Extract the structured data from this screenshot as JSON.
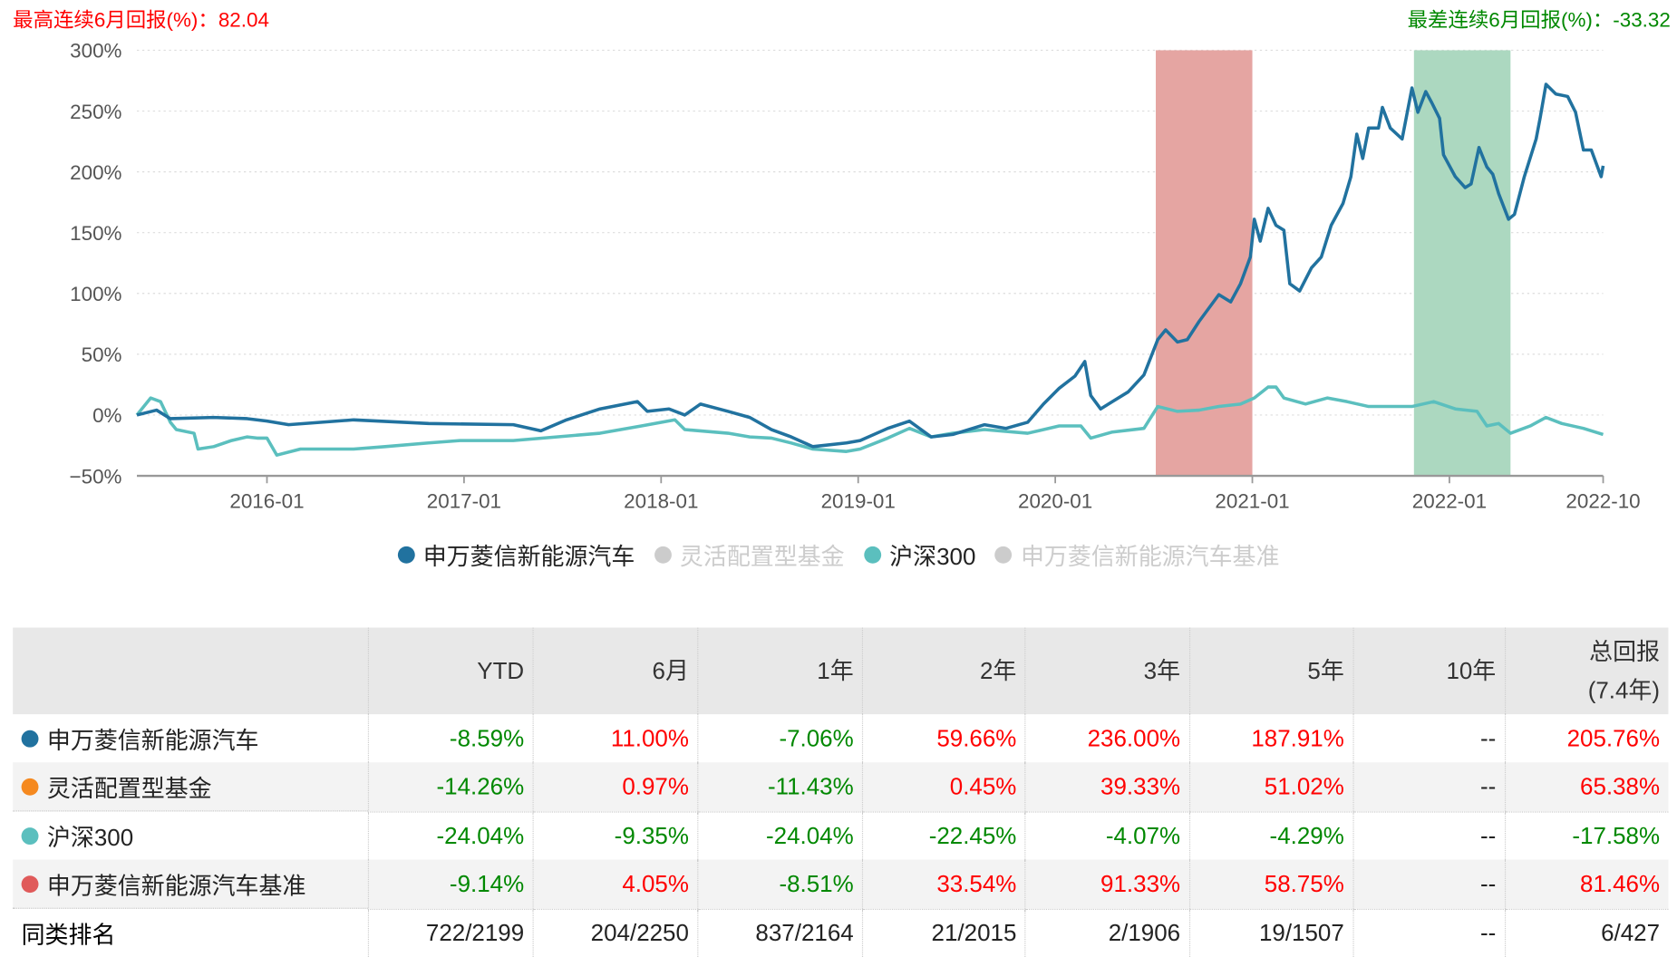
{
  "header": {
    "best_label": "最高连续6月回报(%)：82.04",
    "worst_label": "最差连续6月回报(%)：-33.32"
  },
  "colors": {
    "fund": "#21729f",
    "hs300": "#5bbfbe",
    "flex": "#f5891f",
    "bench": "#e05a5a",
    "inactive": "#cccccc",
    "best_band": "#e5a5a2",
    "worst_band": "#acd8c0"
  },
  "chart_data": {
    "type": "line",
    "xlim": [
      2015.34,
      2022.78
    ],
    "ylim": [
      -50,
      300
    ],
    "yticks": [
      {
        "v": 300,
        "label": "300%"
      },
      {
        "v": 250,
        "label": "250%"
      },
      {
        "v": 200,
        "label": "200%"
      },
      {
        "v": 150,
        "label": "150%"
      },
      {
        "v": 100,
        "label": "100%"
      },
      {
        "v": 50,
        "label": "50%"
      },
      {
        "v": 0,
        "label": "0%"
      },
      {
        "v": -50,
        "label": "−50%"
      }
    ],
    "xticks": [
      {
        "v": 2016.0,
        "label": "2016-01"
      },
      {
        "v": 2017.0,
        "label": "2017-01"
      },
      {
        "v": 2018.0,
        "label": "2018-01"
      },
      {
        "v": 2019.0,
        "label": "2019-01"
      },
      {
        "v": 2020.0,
        "label": "2020-01"
      },
      {
        "v": 2021.0,
        "label": "2021-01"
      },
      {
        "v": 2022.0,
        "label": "2022-01"
      },
      {
        "v": 2022.78,
        "label": "2022-10"
      }
    ],
    "bands": [
      {
        "name": "best-6m",
        "from": 2020.51,
        "to": 2021.0,
        "color": "#e5a5a2"
      },
      {
        "name": "worst-6m",
        "from": 2021.82,
        "to": 2022.31,
        "color": "#acd8c0"
      }
    ],
    "series": [
      {
        "name": "申万菱信新能源汽车",
        "color": "#21729f",
        "active": true,
        "points": [
          [
            2015.34,
            0
          ],
          [
            2015.44,
            4
          ],
          [
            2015.51,
            -3
          ],
          [
            2015.73,
            -2
          ],
          [
            2015.9,
            -3
          ],
          [
            2016.0,
            -5
          ],
          [
            2016.11,
            -8
          ],
          [
            2016.44,
            -4
          ],
          [
            2016.82,
            -7
          ],
          [
            2017.25,
            -8
          ],
          [
            2017.39,
            -13
          ],
          [
            2017.52,
            -4
          ],
          [
            2017.69,
            5
          ],
          [
            2017.88,
            11
          ],
          [
            2017.93,
            3
          ],
          [
            2018.04,
            5
          ],
          [
            2018.12,
            0
          ],
          [
            2018.2,
            9
          ],
          [
            2018.34,
            3
          ],
          [
            2018.45,
            -2
          ],
          [
            2018.56,
            -12
          ],
          [
            2018.66,
            -18
          ],
          [
            2018.77,
            -26
          ],
          [
            2018.94,
            -23
          ],
          [
            2019.01,
            -21
          ],
          [
            2019.15,
            -11
          ],
          [
            2019.26,
            -5
          ],
          [
            2019.37,
            -18
          ],
          [
            2019.48,
            -16
          ],
          [
            2019.64,
            -8
          ],
          [
            2019.75,
            -11
          ],
          [
            2019.86,
            -6
          ],
          [
            2019.94,
            9
          ],
          [
            2020.02,
            22
          ],
          [
            2020.1,
            32
          ],
          [
            2020.15,
            44
          ],
          [
            2020.18,
            16
          ],
          [
            2020.23,
            5
          ],
          [
            2020.29,
            11
          ],
          [
            2020.37,
            19
          ],
          [
            2020.45,
            33
          ],
          [
            2020.52,
            62
          ],
          [
            2020.56,
            70
          ],
          [
            2020.62,
            60
          ],
          [
            2020.67,
            62
          ],
          [
            2020.73,
            77
          ],
          [
            2020.78,
            88
          ],
          [
            2020.83,
            99
          ],
          [
            2020.89,
            93
          ],
          [
            2020.94,
            108
          ],
          [
            2020.99,
            130
          ],
          [
            2021.01,
            161
          ],
          [
            2021.04,
            143
          ],
          [
            2021.08,
            170
          ],
          [
            2021.12,
            156
          ],
          [
            2021.16,
            152
          ],
          [
            2021.19,
            108
          ],
          [
            2021.24,
            102
          ],
          [
            2021.3,
            121
          ],
          [
            2021.35,
            130
          ],
          [
            2021.4,
            156
          ],
          [
            2021.46,
            174
          ],
          [
            2021.5,
            196
          ],
          [
            2021.53,
            231
          ],
          [
            2021.56,
            211
          ],
          [
            2021.59,
            236
          ],
          [
            2021.64,
            236
          ],
          [
            2021.66,
            253
          ],
          [
            2021.7,
            236
          ],
          [
            2021.76,
            227
          ],
          [
            2021.81,
            269
          ],
          [
            2021.84,
            249
          ],
          [
            2021.88,
            266
          ],
          [
            2021.91,
            257
          ],
          [
            2021.95,
            244
          ],
          [
            2021.97,
            214
          ],
          [
            2022.03,
            196
          ],
          [
            2022.08,
            187
          ],
          [
            2022.11,
            190
          ],
          [
            2022.15,
            220
          ],
          [
            2022.19,
            204
          ],
          [
            2022.22,
            198
          ],
          [
            2022.25,
            182
          ],
          [
            2022.3,
            161
          ],
          [
            2022.33,
            165
          ],
          [
            2022.38,
            196
          ],
          [
            2022.44,
            227
          ],
          [
            2022.46,
            244
          ],
          [
            2022.49,
            272
          ],
          [
            2022.54,
            264
          ],
          [
            2022.6,
            262
          ],
          [
            2022.64,
            249
          ],
          [
            2022.68,
            218
          ],
          [
            2022.72,
            218
          ],
          [
            2022.77,
            196
          ],
          [
            2022.78,
            205
          ]
        ]
      },
      {
        "name": "灵活配置型基金",
        "color": "#cccccc",
        "active": false,
        "points": []
      },
      {
        "name": "沪深300",
        "color": "#5bbfbe",
        "active": true,
        "points": [
          [
            2015.34,
            0
          ],
          [
            2015.41,
            14
          ],
          [
            2015.46,
            11
          ],
          [
            2015.51,
            -6
          ],
          [
            2015.54,
            -12
          ],
          [
            2015.63,
            -15
          ],
          [
            2015.65,
            -28
          ],
          [
            2015.73,
            -26
          ],
          [
            2015.82,
            -21
          ],
          [
            2015.9,
            -18
          ],
          [
            2015.95,
            -19
          ],
          [
            2016.0,
            -19
          ],
          [
            2016.05,
            -33
          ],
          [
            2016.17,
            -28
          ],
          [
            2016.44,
            -28
          ],
          [
            2016.6,
            -26
          ],
          [
            2016.82,
            -23
          ],
          [
            2016.98,
            -21
          ],
          [
            2017.25,
            -21
          ],
          [
            2017.47,
            -18
          ],
          [
            2017.69,
            -15
          ],
          [
            2017.9,
            -9
          ],
          [
            2018.07,
            -4
          ],
          [
            2018.12,
            -12
          ],
          [
            2018.34,
            -15
          ],
          [
            2018.45,
            -18
          ],
          [
            2018.56,
            -19
          ],
          [
            2018.66,
            -23
          ],
          [
            2018.77,
            -28
          ],
          [
            2018.94,
            -30
          ],
          [
            2019.01,
            -28
          ],
          [
            2019.15,
            -19
          ],
          [
            2019.26,
            -11
          ],
          [
            2019.37,
            -18
          ],
          [
            2019.48,
            -15
          ],
          [
            2019.64,
            -12
          ],
          [
            2019.86,
            -15
          ],
          [
            2020.02,
            -9
          ],
          [
            2020.13,
            -9
          ],
          [
            2020.18,
            -19
          ],
          [
            2020.29,
            -14
          ],
          [
            2020.45,
            -11
          ],
          [
            2020.52,
            7
          ],
          [
            2020.62,
            3
          ],
          [
            2020.73,
            4
          ],
          [
            2020.83,
            7
          ],
          [
            2020.94,
            9
          ],
          [
            2021.01,
            14
          ],
          [
            2021.08,
            23
          ],
          [
            2021.12,
            23
          ],
          [
            2021.16,
            14
          ],
          [
            2021.27,
            9
          ],
          [
            2021.38,
            14
          ],
          [
            2021.48,
            11
          ],
          [
            2021.59,
            7
          ],
          [
            2021.81,
            7
          ],
          [
            2021.92,
            11
          ],
          [
            2022.03,
            5
          ],
          [
            2022.14,
            3
          ],
          [
            2022.19,
            -9
          ],
          [
            2022.25,
            -7
          ],
          [
            2022.31,
            -15
          ],
          [
            2022.41,
            -9
          ],
          [
            2022.49,
            -2
          ],
          [
            2022.57,
            -7
          ],
          [
            2022.68,
            -11
          ],
          [
            2022.78,
            -16
          ]
        ]
      },
      {
        "name": "申万菱信新能源汽车基准",
        "color": "#cccccc",
        "active": false,
        "points": []
      }
    ]
  },
  "table": {
    "headers": [
      "",
      "YTD",
      "6月",
      "1年",
      "2年",
      "3年",
      "5年",
      "10年",
      "总回报",
      "(7.4年)"
    ],
    "rows": [
      {
        "name": "申万菱信新能源汽车",
        "color": "#21729f",
        "values": [
          "-8.59%",
          "11.00%",
          "-7.06%",
          "59.66%",
          "236.00%",
          "187.91%",
          "--",
          "205.76%"
        ]
      },
      {
        "name": "灵活配置型基金",
        "color": "#f5891f",
        "values": [
          "-14.26%",
          "0.97%",
          "-11.43%",
          "0.45%",
          "39.33%",
          "51.02%",
          "--",
          "65.38%"
        ]
      },
      {
        "name": "沪深300",
        "color": "#5bbfbe",
        "values": [
          "-24.04%",
          "-9.35%",
          "-24.04%",
          "-22.45%",
          "-4.07%",
          "-4.29%",
          "--",
          "-17.58%"
        ]
      },
      {
        "name": "申万菱信新能源汽车基准",
        "color": "#e05a5a",
        "values": [
          "-9.14%",
          "4.05%",
          "-8.51%",
          "33.54%",
          "91.33%",
          "58.75%",
          "--",
          "81.46%"
        ]
      }
    ],
    "rank": {
      "label": "同类排名",
      "values": [
        "722/2199",
        "204/2250",
        "837/2164",
        "21/2015",
        "2/1906",
        "19/1507",
        "--",
        "6/427"
      ]
    }
  }
}
